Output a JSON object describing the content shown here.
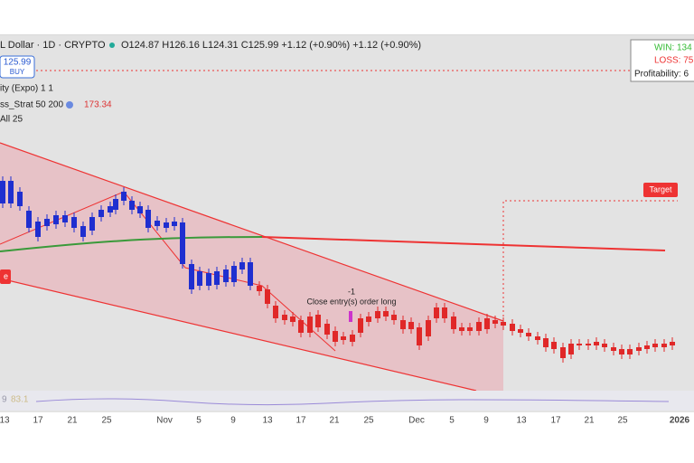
{
  "header": {
    "symbol": "L Dollar · 1D · CRYPTO",
    "ohlc": "O124.87 H126.16 L124.31 C125.99 +1.12 (+0.90%) +1.12 (+0.90%)"
  },
  "buy_button": {
    "price": "125.99",
    "label": "BUY"
  },
  "indicators": [
    "ity (Expo) 1 1",
    "ss_Strat 50 200",
    "173.34",
    "All 25"
  ],
  "stats": {
    "win": "WIN: 134",
    "loss": "LOSS: 75",
    "profitability": "Profitability: 6"
  },
  "labels": {
    "target": "Target",
    "left": "e",
    "count": "-1",
    "order": "Close entry(s) order long"
  },
  "oscillator": {
    "left": "9",
    "value": "83.1"
  },
  "x_axis": [
    "13",
    "17",
    "21",
    "25",
    "Nov",
    "5",
    "9",
    "13",
    "17",
    "21",
    "25",
    "Dec",
    "5",
    "9",
    "13",
    "17",
    "21",
    "25",
    "2026"
  ]
}
